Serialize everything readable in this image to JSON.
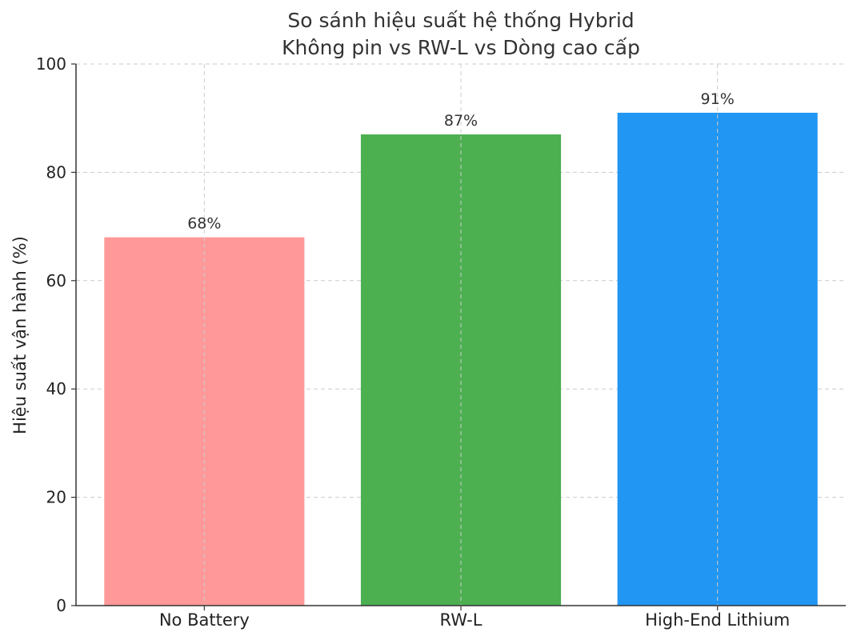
{
  "chart_data": {
    "type": "bar",
    "title": [
      "So sánh hiệu suất hệ thống Hybrid",
      "Không pin vs RW-L vs Dòng cao cấp"
    ],
    "xlabel": "",
    "ylabel": "Hiệu suất vận hành (%)",
    "ylim": [
      0,
      100
    ],
    "yticks": [
      0,
      20,
      40,
      60,
      80,
      100
    ],
    "categories": [
      "No Battery",
      "RW-L",
      "High-End Lithium"
    ],
    "values": [
      68,
      87,
      91
    ],
    "value_labels": [
      "68%",
      "87%",
      "91%"
    ],
    "colors": [
      "#ff9999",
      "#4caf50",
      "#2196f3"
    ],
    "grid": true,
    "legend": "none"
  }
}
